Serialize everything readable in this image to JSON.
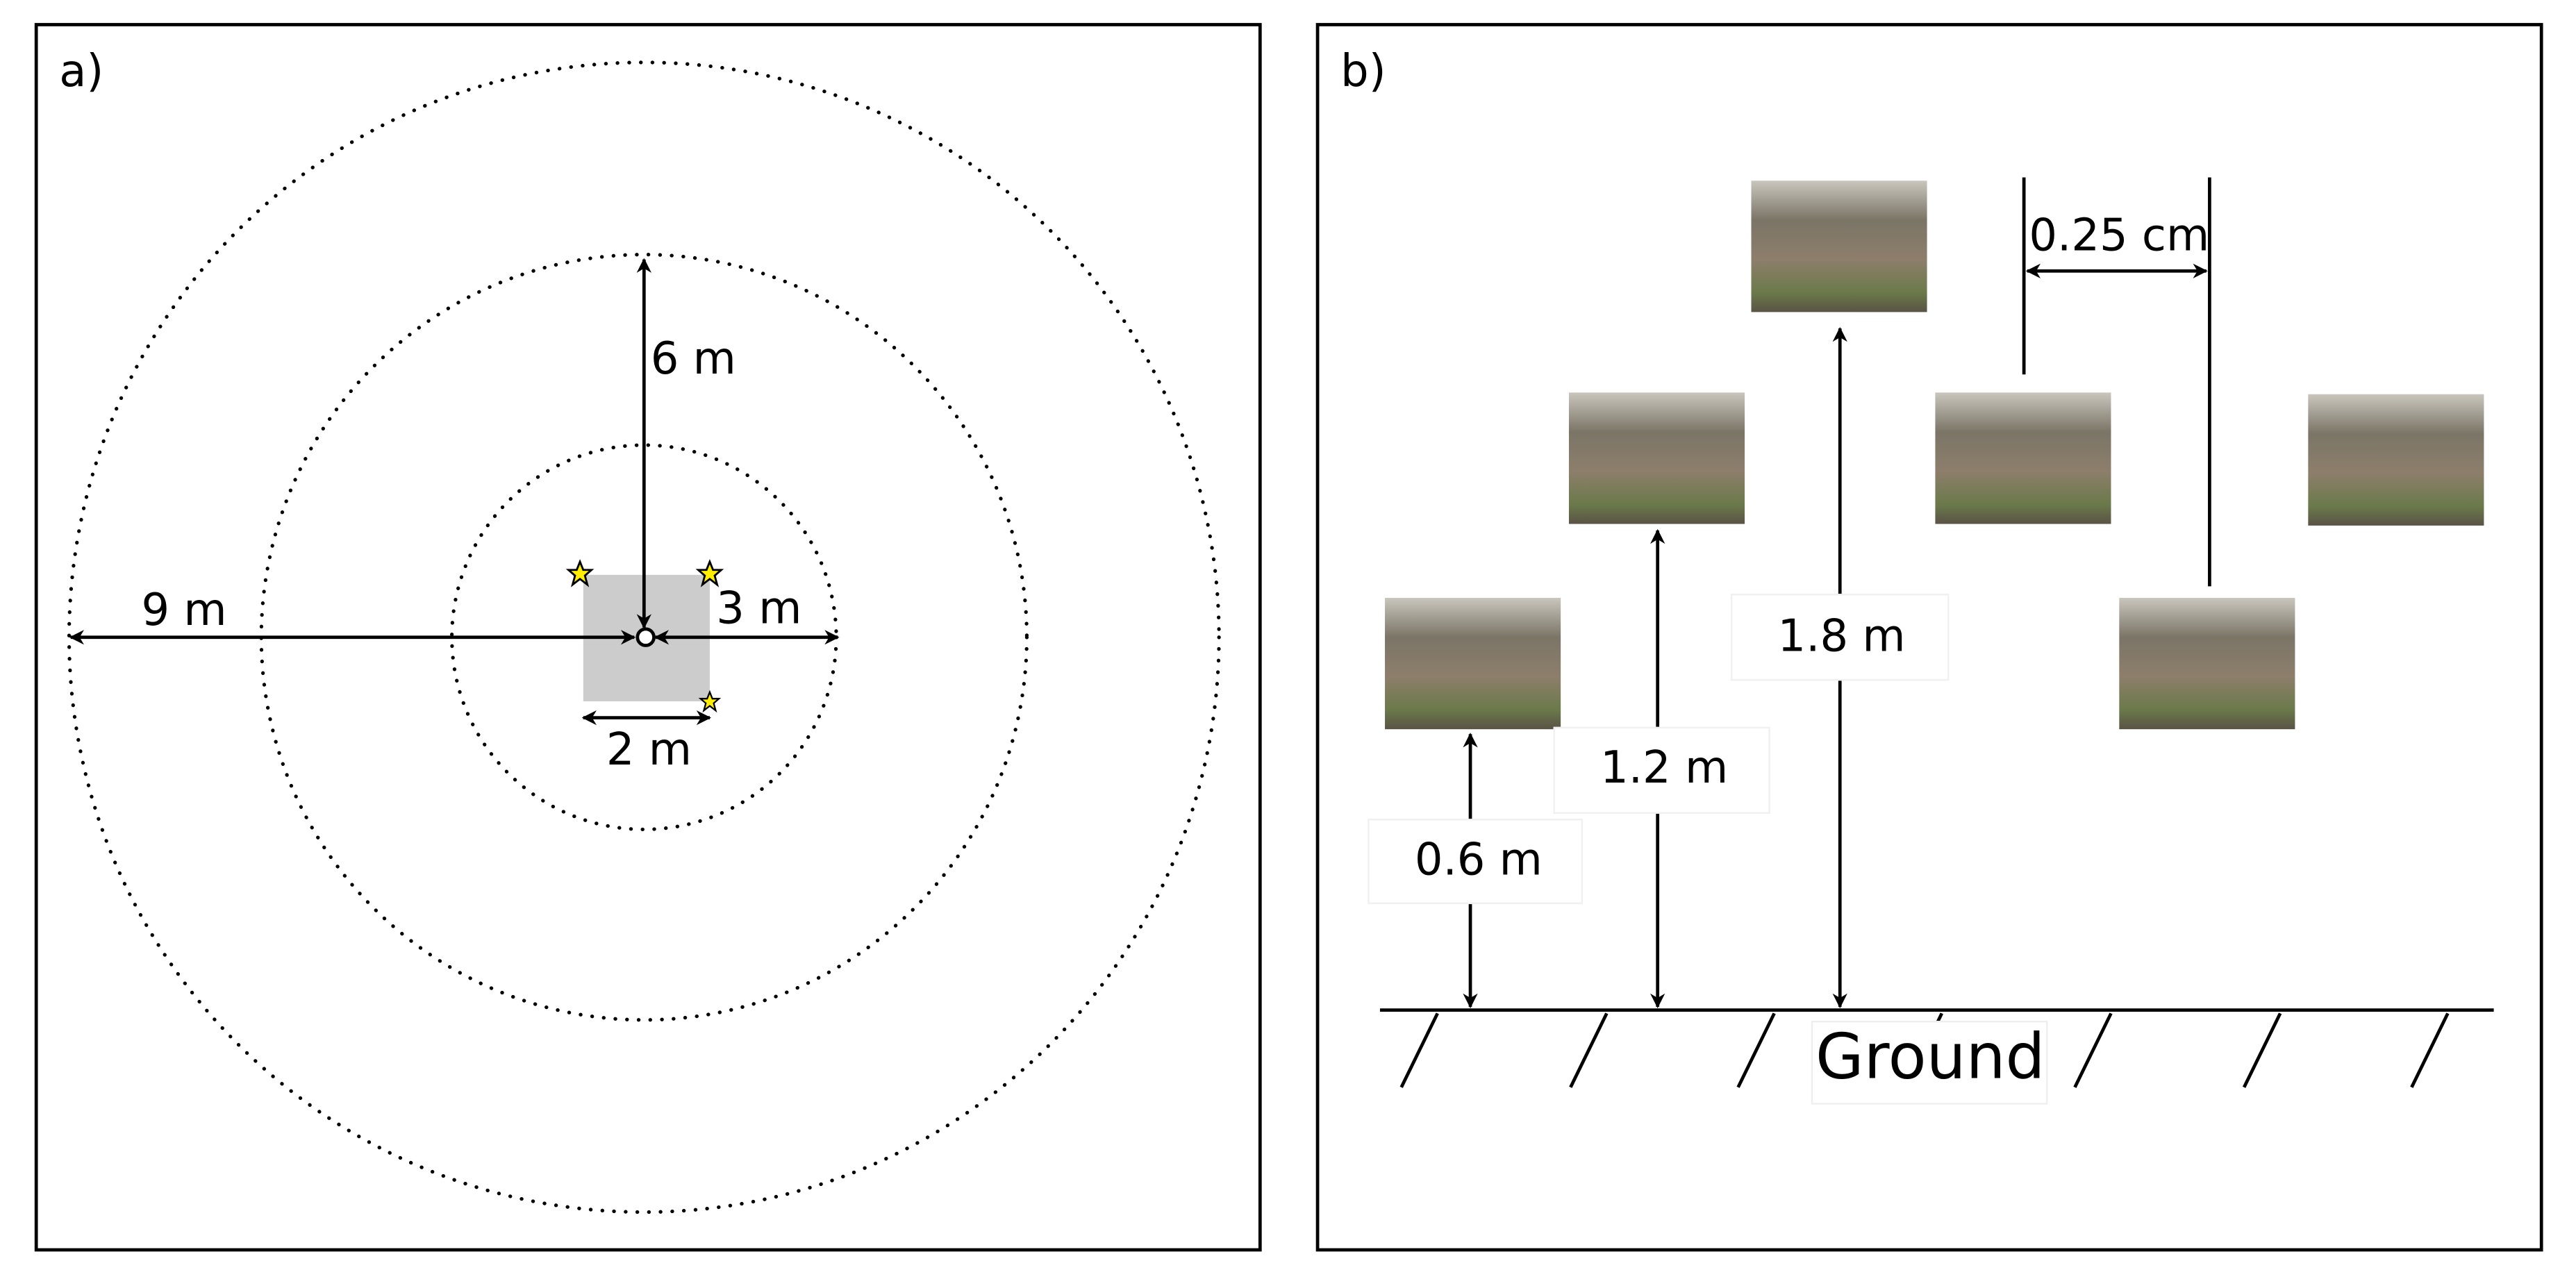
{
  "panels": [
    {
      "label": "a)",
      "dimensions": {
        "outer_radius": "9 m",
        "middle_radius": "6 m",
        "inner_radius": "3 m",
        "plot_width": "2 m"
      }
    },
    {
      "label": "b)",
      "heights": [
        "0.6 m",
        "1.2 m",
        "1.8 m"
      ],
      "spacing": "0.25 cm",
      "ground": "Ground"
    }
  ]
}
